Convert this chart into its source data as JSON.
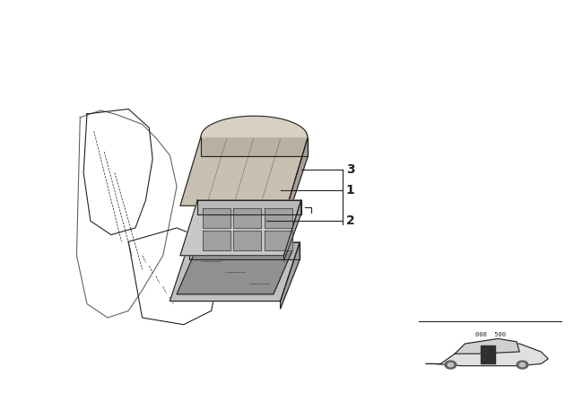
{
  "title": "",
  "background_color": "#ffffff",
  "line_color": "#222222",
  "label_1": "1",
  "label_2": "2",
  "label_3": "3",
  "part_number": "000  500",
  "fig_width": 6.4,
  "fig_height": 4.48,
  "dpi": 100
}
